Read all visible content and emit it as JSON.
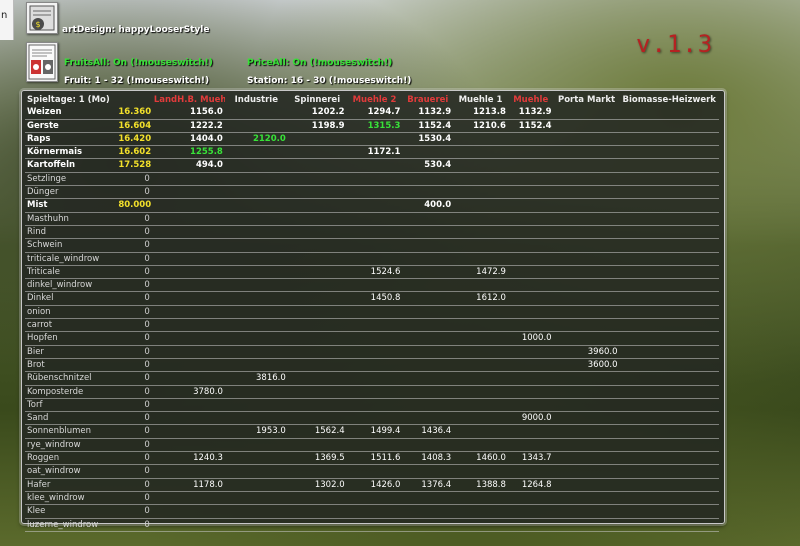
{
  "top_text": "n",
  "art_design": "artDesign: happyLooserStyle",
  "fruits_all": "FruitsAll: On (!mouseswitch!)",
  "price_all": "PriceAll: On (!mouseswitch!)",
  "fruit_range": "Fruit: 1 - 32 (!mouseswitch!)",
  "station_range": "Station: 16 - 30 (!mouseswitch!)",
  "version": "v.1.3",
  "colors": {
    "red": "#e23b3b",
    "green": "#38e238",
    "yellow": "#f2e02b"
  },
  "table": {
    "headers": [
      {
        "label": "Spieltage: 1 (Mo)",
        "red": false
      },
      {
        "label": "",
        "red": false
      },
      {
        "label": "LandH.B. Muehle",
        "red": true
      },
      {
        "label": "Industrie",
        "red": false
      },
      {
        "label": "Spinnerei",
        "red": false
      },
      {
        "label": "Muehle 2",
        "red": true
      },
      {
        "label": "Brauerei",
        "red": true
      },
      {
        "label": "Muehle 1",
        "red": false
      },
      {
        "label": "Muehle",
        "red": true
      },
      {
        "label": "Porta Markt",
        "red": false
      },
      {
        "label": "Biomasse-Heizwerk",
        "red": false
      }
    ],
    "rows": [
      {
        "name": "Weizen",
        "bold": true,
        "amount": "16.360",
        "yellow": true,
        "cells": [
          "1156.0",
          "",
          "1202.2",
          "1294.7",
          "1132.9",
          "1213.8",
          "1132.9",
          "",
          ""
        ],
        "green_idx": -1
      },
      {
        "name": "Gerste",
        "bold": true,
        "amount": "16.604",
        "yellow": true,
        "cells": [
          "1222.2",
          "",
          "1198.9",
          "1315.3",
          "1152.4",
          "1210.6",
          "1152.4",
          "",
          ""
        ],
        "green_idx": 3
      },
      {
        "name": "Raps",
        "bold": true,
        "amount": "16.420",
        "yellow": true,
        "cells": [
          "1404.0",
          "2120.0",
          "",
          "",
          "1530.4",
          "",
          "",
          "",
          ""
        ],
        "green_idx": 1
      },
      {
        "name": "Körnermais",
        "bold": true,
        "amount": "16.602",
        "yellow": true,
        "cells": [
          "1255.8",
          "",
          "",
          "1172.1",
          "",
          "",
          "",
          "",
          ""
        ],
        "green_idx": 0
      },
      {
        "name": "Kartoffeln",
        "bold": true,
        "amount": "17.528",
        "yellow": true,
        "cells": [
          "494.0",
          "",
          "",
          "",
          "530.4",
          "",
          "",
          "",
          ""
        ],
        "green_idx": -1
      },
      {
        "name": "Setzlinge",
        "bold": false,
        "amount": "0",
        "yellow": false,
        "cells": [
          "",
          "",
          "",
          "",
          "",
          "",
          "",
          "",
          ""
        ],
        "green_idx": -1
      },
      {
        "name": "Dünger",
        "bold": false,
        "amount": "0",
        "yellow": false,
        "cells": [
          "",
          "",
          "",
          "",
          "",
          "",
          "",
          "",
          ""
        ],
        "green_idx": -1
      },
      {
        "name": "Mist",
        "bold": true,
        "amount": "80.000",
        "yellow": true,
        "cells": [
          "",
          "",
          "",
          "",
          "400.0",
          "",
          "",
          "",
          ""
        ],
        "green_idx": -1
      },
      {
        "name": "Masthuhn",
        "bold": false,
        "amount": "0",
        "yellow": false,
        "cells": [
          "",
          "",
          "",
          "",
          "",
          "",
          "",
          "",
          ""
        ],
        "green_idx": -1
      },
      {
        "name": "Rind",
        "bold": false,
        "amount": "0",
        "yellow": false,
        "cells": [
          "",
          "",
          "",
          "",
          "",
          "",
          "",
          "",
          ""
        ],
        "green_idx": -1
      },
      {
        "name": "Schwein",
        "bold": false,
        "amount": "0",
        "yellow": false,
        "cells": [
          "",
          "",
          "",
          "",
          "",
          "",
          "",
          "",
          ""
        ],
        "green_idx": -1
      },
      {
        "name": "triticale_windrow",
        "bold": false,
        "amount": "0",
        "yellow": false,
        "cells": [
          "",
          "",
          "",
          "",
          "",
          "",
          "",
          "",
          ""
        ],
        "green_idx": -1
      },
      {
        "name": "Triticale",
        "bold": false,
        "amount": "0",
        "yellow": false,
        "cells": [
          "",
          "",
          "",
          "1524.6",
          "",
          "1472.9",
          "",
          "",
          ""
        ],
        "green_idx": -1
      },
      {
        "name": "dinkel_windrow",
        "bold": false,
        "amount": "0",
        "yellow": false,
        "cells": [
          "",
          "",
          "",
          "",
          "",
          "",
          "",
          "",
          ""
        ],
        "green_idx": -1
      },
      {
        "name": "Dinkel",
        "bold": false,
        "amount": "0",
        "yellow": false,
        "cells": [
          "",
          "",
          "",
          "1450.8",
          "",
          "1612.0",
          "",
          "",
          ""
        ],
        "green_idx": -1
      },
      {
        "name": "onion",
        "bold": false,
        "amount": "0",
        "yellow": false,
        "cells": [
          "",
          "",
          "",
          "",
          "",
          "",
          "",
          "",
          ""
        ],
        "green_idx": -1
      },
      {
        "name": "carrot",
        "bold": false,
        "amount": "0",
        "yellow": false,
        "cells": [
          "",
          "",
          "",
          "",
          "",
          "",
          "",
          "",
          ""
        ],
        "green_idx": -1
      },
      {
        "name": "Hopfen",
        "bold": false,
        "amount": "0",
        "yellow": false,
        "cells": [
          "",
          "",
          "",
          "",
          "",
          "",
          "1000.0",
          "",
          ""
        ],
        "green_idx": -1
      },
      {
        "name": "Bier",
        "bold": false,
        "amount": "0",
        "yellow": false,
        "cells": [
          "",
          "",
          "",
          "",
          "",
          "",
          "",
          "3960.0",
          ""
        ],
        "green_idx": -1
      },
      {
        "name": "Brot",
        "bold": false,
        "amount": "0",
        "yellow": false,
        "cells": [
          "",
          "",
          "",
          "",
          "",
          "",
          "",
          "3600.0",
          ""
        ],
        "green_idx": -1
      },
      {
        "name": "Rübenschnitzel",
        "bold": false,
        "amount": "0",
        "yellow": false,
        "cells": [
          "",
          "3816.0",
          "",
          "",
          "",
          "",
          "",
          "",
          ""
        ],
        "green_idx": -1
      },
      {
        "name": "Komposterde",
        "bold": false,
        "amount": "0",
        "yellow": false,
        "cells": [
          "3780.0",
          "",
          "",
          "",
          "",
          "",
          "",
          "",
          ""
        ],
        "green_idx": -1
      },
      {
        "name": "Torf",
        "bold": false,
        "amount": "0",
        "yellow": false,
        "cells": [
          "",
          "",
          "",
          "",
          "",
          "",
          "",
          "",
          ""
        ],
        "green_idx": -1
      },
      {
        "name": "Sand",
        "bold": false,
        "amount": "0",
        "yellow": false,
        "cells": [
          "",
          "",
          "",
          "",
          "",
          "",
          "9000.0",
          "",
          ""
        ],
        "green_idx": -1
      },
      {
        "name": "Sonnenblumen",
        "bold": false,
        "amount": "0",
        "yellow": false,
        "cells": [
          "",
          "1953.0",
          "1562.4",
          "1499.4",
          "1436.4",
          "",
          "",
          "",
          ""
        ],
        "green_idx": -1
      },
      {
        "name": "rye_windrow",
        "bold": false,
        "amount": "0",
        "yellow": false,
        "cells": [
          "",
          "",
          "",
          "",
          "",
          "",
          "",
          "",
          ""
        ],
        "green_idx": -1
      },
      {
        "name": "Roggen",
        "bold": false,
        "amount": "0",
        "yellow": false,
        "cells": [
          "1240.3",
          "",
          "1369.5",
          "1511.6",
          "1408.3",
          "1460.0",
          "1343.7",
          "",
          ""
        ],
        "green_idx": -1
      },
      {
        "name": "oat_windrow",
        "bold": false,
        "amount": "0",
        "yellow": false,
        "cells": [
          "",
          "",
          "",
          "",
          "",
          "",
          "",
          "",
          ""
        ],
        "green_idx": -1
      },
      {
        "name": "Hafer",
        "bold": false,
        "amount": "0",
        "yellow": false,
        "cells": [
          "1178.0",
          "",
          "1302.0",
          "1426.0",
          "1376.4",
          "1388.8",
          "1264.8",
          "",
          ""
        ],
        "green_idx": -1
      },
      {
        "name": "klee_windrow",
        "bold": false,
        "amount": "0",
        "yellow": false,
        "cells": [
          "",
          "",
          "",
          "",
          "",
          "",
          "",
          "",
          ""
        ],
        "green_idx": -1
      },
      {
        "name": "Klee",
        "bold": false,
        "amount": "0",
        "yellow": false,
        "cells": [
          "",
          "",
          "",
          "",
          "",
          "",
          "",
          "",
          ""
        ],
        "green_idx": -1
      },
      {
        "name": "luzerne_windrow",
        "bold": false,
        "amount": "0",
        "yellow": false,
        "cells": [
          "",
          "",
          "",
          "",
          "",
          "",
          "",
          "",
          ""
        ],
        "green_idx": -1
      }
    ]
  }
}
